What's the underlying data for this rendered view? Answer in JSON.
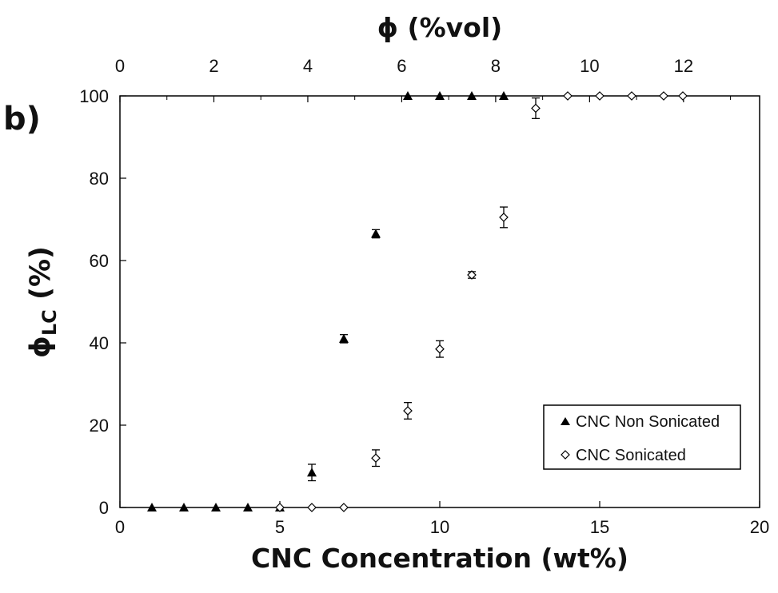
{
  "panel_label": "b)",
  "chart_data": {
    "type": "scatter",
    "xlabel": "CNC Concentration (wt%)",
    "x2label": "ϕ (%vol)",
    "ylabel_main": "ϕ",
    "ylabel_sub": "LC",
    "ylabel_unit": " (%)",
    "xlim": [
      0,
      20
    ],
    "x2lim": [
      0,
      13.62
    ],
    "ylim": [
      0,
      100
    ],
    "xticks": [
      0,
      5,
      10,
      15,
      20
    ],
    "x2ticks": [
      0,
      2,
      4,
      6,
      8,
      10,
      12
    ],
    "x2_per_x": 0.681,
    "yticks": [
      0,
      20,
      40,
      60,
      80,
      100
    ],
    "grid": false,
    "legend_position": "bottom-right",
    "series": [
      {
        "name": "CNC Non Sonicated",
        "marker": "triangle",
        "color": "#000000",
        "points": [
          {
            "x": 1,
            "y": 0,
            "err": 0
          },
          {
            "x": 2,
            "y": 0,
            "err": 0
          },
          {
            "x": 3,
            "y": 0,
            "err": 0
          },
          {
            "x": 4,
            "y": 0,
            "err": 0
          },
          {
            "x": 5,
            "y": 0,
            "err": 0
          },
          {
            "x": 6,
            "y": 8.5,
            "err": 2
          },
          {
            "x": 7,
            "y": 41,
            "err": 1
          },
          {
            "x": 8,
            "y": 66.5,
            "err": 1
          },
          {
            "x": 9,
            "y": 100,
            "err": 0
          },
          {
            "x": 10,
            "y": 100,
            "err": 0
          },
          {
            "x": 11,
            "y": 100,
            "err": 0
          },
          {
            "x": 12,
            "y": 100,
            "err": 0
          }
        ]
      },
      {
        "name": "CNC Sonicated",
        "marker": "diamond-open",
        "color": "#000000",
        "points": [
          {
            "x": 5,
            "y": 0,
            "err": 0
          },
          {
            "x": 6,
            "y": 0,
            "err": 0
          },
          {
            "x": 7,
            "y": 0,
            "err": 0
          },
          {
            "x": 8,
            "y": 12,
            "err": 2
          },
          {
            "x": 9,
            "y": 23.5,
            "err": 2
          },
          {
            "x": 10,
            "y": 38.5,
            "err": 2
          },
          {
            "x": 11,
            "y": 56.5,
            "err": 0.8
          },
          {
            "x": 12,
            "y": 70.5,
            "err": 2.5
          },
          {
            "x": 13,
            "y": 97,
            "err": 2.5
          },
          {
            "x": 14,
            "y": 100,
            "err": 0
          },
          {
            "x": 15,
            "y": 100,
            "err": 0
          },
          {
            "x": 16,
            "y": 100,
            "err": 0
          },
          {
            "x": 17,
            "y": 100,
            "err": 0
          },
          {
            "x": 17.6,
            "y": 100,
            "err": 0
          }
        ]
      }
    ]
  }
}
